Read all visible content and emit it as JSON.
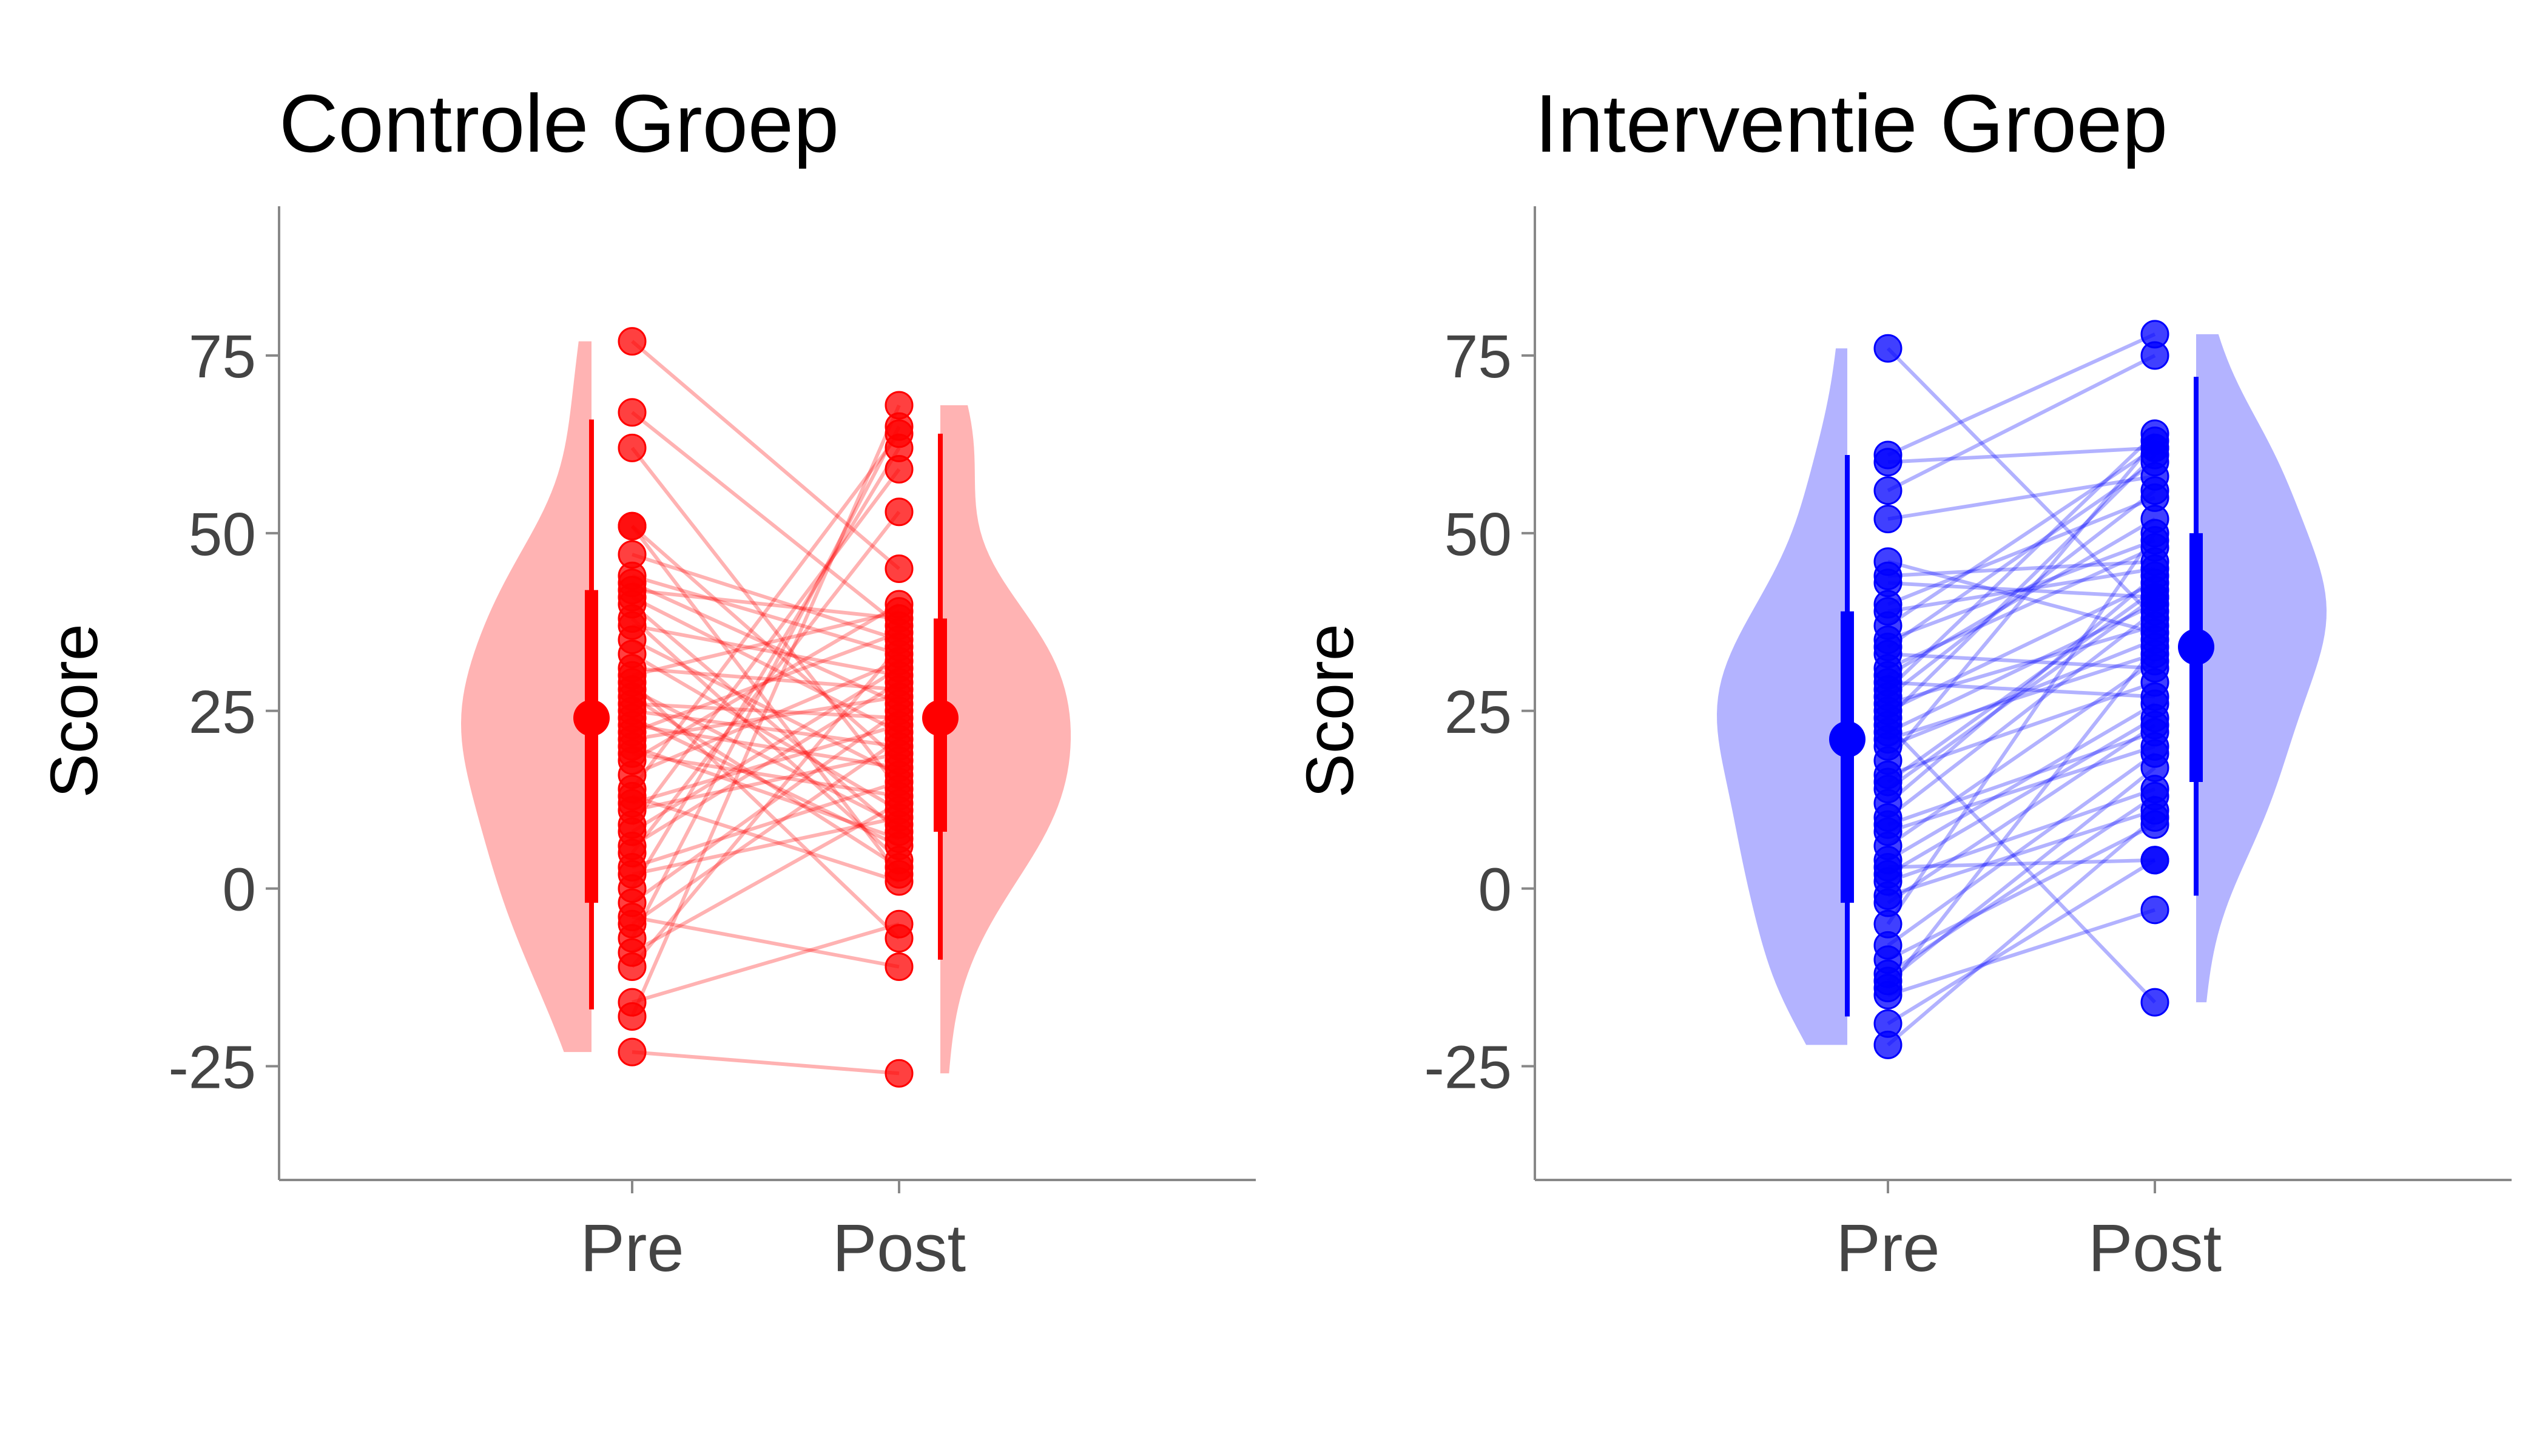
{
  "chart_data": [
    {
      "type": "violin-paired-scatter",
      "title": "Controle Groep",
      "xlabel": "",
      "ylabel": "Score",
      "categories": [
        "Pre",
        "Post"
      ],
      "yticks": [
        -25,
        0,
        25,
        50,
        75
      ],
      "ylim": [
        -41,
        96
      ],
      "grid": false,
      "colors": {
        "main": "#ff0000",
        "violin": "#ffb3b3"
      },
      "pairs": [
        [
          77,
          45
        ],
        [
          67,
          37
        ],
        [
          62,
          14
        ],
        [
          51,
          2
        ],
        [
          51,
          18
        ],
        [
          47,
          35
        ],
        [
          44,
          33
        ],
        [
          43,
          26
        ],
        [
          42,
          38
        ],
        [
          41,
          22
        ],
        [
          37,
          30
        ],
        [
          35,
          16
        ],
        [
          33,
          11
        ],
        [
          31,
          28
        ],
        [
          28,
          9
        ],
        [
          27,
          3
        ],
        [
          26,
          24
        ],
        [
          25,
          20
        ],
        [
          24,
          6
        ],
        [
          22,
          36
        ],
        [
          21,
          27
        ],
        [
          19,
          13
        ],
        [
          18,
          40
        ],
        [
          16,
          32
        ],
        [
          14,
          64
        ],
        [
          12,
          23
        ],
        [
          11,
          19
        ],
        [
          9,
          59
        ],
        [
          8,
          31
        ],
        [
          5,
          53
        ],
        [
          3,
          15
        ],
        [
          2,
          10
        ],
        [
          -2,
          25
        ],
        [
          -5,
          21
        ],
        [
          -7,
          65
        ],
        [
          -9,
          12
        ],
        [
          -11,
          34
        ],
        [
          -16,
          -5
        ],
        [
          -18,
          68
        ],
        [
          -23,
          -26
        ],
        [
          38,
          4
        ],
        [
          29,
          -7
        ],
        [
          23,
          17
        ],
        [
          13,
          1
        ],
        [
          6,
          29
        ],
        [
          0,
          62
        ],
        [
          -4,
          -11
        ],
        [
          40,
          8
        ],
        [
          30,
          39
        ],
        [
          20,
          7
        ]
      ],
      "summary": {
        "Pre": {
          "mean": 24,
          "q1": -2,
          "q3": 42,
          "lo": -17,
          "hi": 66
        },
        "Post": {
          "mean": 24,
          "q1": 8,
          "q3": 38,
          "lo": -10,
          "hi": 64
        }
      },
      "violin_range": {
        "Pre": [
          -23,
          77
        ],
        "Post": [
          -26,
          68
        ]
      }
    },
    {
      "type": "violin-paired-scatter",
      "title": "Interventie Groep",
      "xlabel": "",
      "ylabel": "Score",
      "categories": [
        "Pre",
        "Post"
      ],
      "yticks": [
        -25,
        0,
        25,
        50,
        75
      ],
      "ylim": [
        -41,
        96
      ],
      "grid": false,
      "colors": {
        "main": "#0000ff",
        "violin": "#b3b3ff"
      },
      "pairs": [
        [
          76,
          38
        ],
        [
          61,
          78
        ],
        [
          60,
          62
        ],
        [
          56,
          75
        ],
        [
          52,
          58
        ],
        [
          46,
          36
        ],
        [
          44,
          46
        ],
        [
          43,
          41
        ],
        [
          40,
          55
        ],
        [
          39,
          45
        ],
        [
          37,
          62
        ],
        [
          35,
          49
        ],
        [
          34,
          60
        ],
        [
          31,
          48
        ],
        [
          30,
          52
        ],
        [
          28,
          64
        ],
        [
          26,
          37
        ],
        [
          25,
          43
        ],
        [
          24,
          61
        ],
        [
          22,
          40
        ],
        [
          20,
          35
        ],
        [
          18,
          63
        ],
        [
          16,
          29
        ],
        [
          14,
          41
        ],
        [
          12,
          44
        ],
        [
          10,
          39
        ],
        [
          8,
          20
        ],
        [
          6,
          32
        ],
        [
          4,
          26
        ],
        [
          2,
          24
        ],
        [
          1,
          14
        ],
        [
          -1,
          11
        ],
        [
          -2,
          23
        ],
        [
          -8,
          19
        ],
        [
          -10,
          9
        ],
        [
          -12,
          13
        ],
        [
          -13,
          17
        ],
        [
          -15,
          -3
        ],
        [
          -19,
          4
        ],
        [
          -22,
          10
        ],
        [
          33,
          31
        ],
        [
          27,
          56
        ],
        [
          21,
          33
        ],
        [
          15,
          42
        ],
        [
          -5,
          50
        ],
        [
          9,
          22
        ],
        [
          3,
          4
        ],
        [
          -14,
          34
        ],
        [
          29,
          27
        ],
        [
          23,
          -16
        ]
      ],
      "summary": {
        "Pre": {
          "mean": 21,
          "q1": -2,
          "q3": 39,
          "lo": -18,
          "hi": 61
        },
        "Post": {
          "mean": 34,
          "q1": 15,
          "q3": 50,
          "lo": -1,
          "hi": 72
        }
      },
      "violin_range": {
        "Pre": [
          -22,
          76
        ],
        "Post": [
          -16,
          78
        ]
      }
    }
  ]
}
